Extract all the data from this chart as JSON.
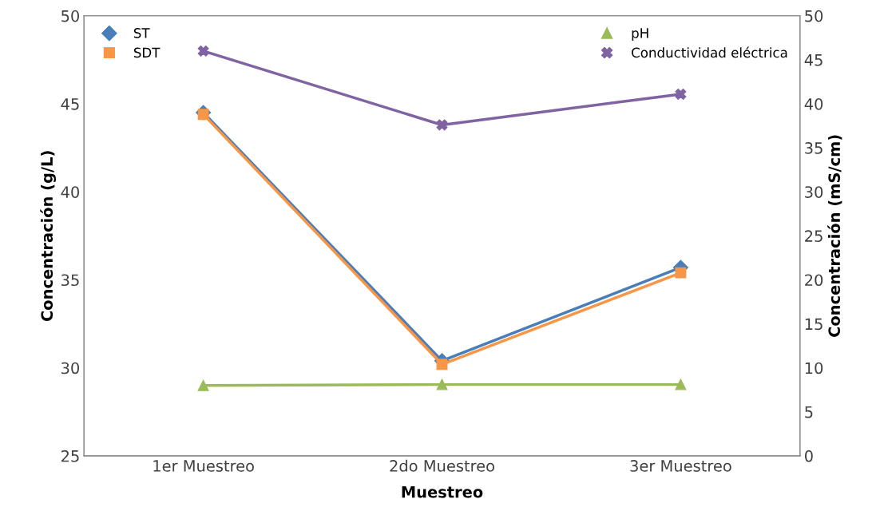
{
  "chart_data": {
    "type": "line",
    "xlabel": "Muestreo",
    "ylabel": "Concentración (g/L)",
    "y2label": "Concentración (mS/cm)",
    "categories": [
      "1er Muestreo",
      "2do Muestreo",
      "3er Muestreo"
    ],
    "series": [
      {
        "name": "ST",
        "color": "#4a7ebb",
        "marker": "diamond",
        "values": [
          44.5,
          30.4,
          35.7
        ]
      },
      {
        "name": "SDT",
        "color": "#f79646",
        "marker": "square",
        "values": [
          44.4,
          30.2,
          35.4
        ]
      },
      {
        "name": "pH",
        "color": "#9bbb59",
        "marker": "triangle",
        "axis": "y2",
        "values": [
          8.0,
          8.1,
          8.1
        ]
      },
      {
        "name": "Conductividad eléctrica",
        "color": "#8064a2",
        "marker": "cross",
        "axis": "y2",
        "values": [
          46.0,
          37.6,
          41.1
        ]
      }
    ],
    "ylim": [
      25,
      50
    ],
    "yticks": [
      25,
      30,
      35,
      40,
      45,
      50
    ],
    "y2lim": [
      0,
      50
    ],
    "y2ticks": [
      0,
      5,
      10,
      15,
      20,
      25,
      30,
      35,
      40,
      45,
      50
    ],
    "grid": false,
    "legend": "top"
  }
}
